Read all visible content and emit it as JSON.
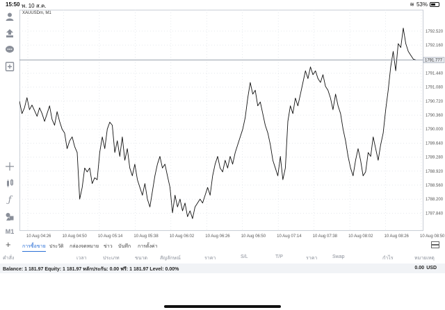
{
  "status": {
    "time": "15:50",
    "date": "พ. 10 ส.ค.",
    "battery": "53%",
    "battery_level": 0.53
  },
  "toolbar": {
    "items": [
      {
        "name": "account-icon",
        "glyph": "●"
      },
      {
        "name": "trade-icon",
        "glyph": "⇵"
      },
      {
        "name": "chat-icon",
        "glyph": "●"
      },
      {
        "name": "new-order-icon",
        "glyph": "+"
      },
      {
        "name": "crosshair-icon",
        "glyph": "+"
      },
      {
        "name": "chart-type-icon",
        "glyph": "┃"
      },
      {
        "name": "indicator-icon",
        "glyph": "ƒ"
      },
      {
        "name": "objects-icon",
        "glyph": "♦"
      }
    ],
    "timeframe": "M1"
  },
  "chart": {
    "symbol_label": "XAUUSDm, M1",
    "current_price": "1791.777",
    "colors": {
      "line": "#111111",
      "grid": "#d6dbe2",
      "price_line": "#8c95a3",
      "price_tag_bg": "#e6e9ee"
    },
    "chart_data": {
      "type": "line",
      "title": "XAUUSDm, M1",
      "xlabel": "",
      "ylabel": "",
      "ylim": [
        1787.4,
        1793.0
      ],
      "y_ticks": [
        "1792.520",
        "1792.160",
        "1791.440",
        "1791.080",
        "1790.720",
        "1790.360",
        "1790.000",
        "1789.640",
        "1789.280",
        "1788.920",
        "1788.560",
        "1788.200",
        "1787.840"
      ],
      "x_ticks": [
        "10 Aug 04:26",
        "10 Aug 04:50",
        "10 Aug 05:14",
        "10 Aug 05:38",
        "10 Aug 06:02",
        "10 Aug 06:26",
        "10 Aug 06:50",
        "10 Aug 07:14",
        "10 Aug 07:38",
        "10 Aug 08:02",
        "10 Aug 08:26",
        "10 Aug 08:50"
      ],
      "series": [
        {
          "values": [
            1790.72,
            1790.4,
            1790.55,
            1790.81,
            1790.5,
            1790.62,
            1790.48,
            1790.33,
            1790.55,
            1790.4,
            1790.2,
            1790.4,
            1790.6,
            1790.25,
            1790.1,
            1790.45,
            1790.2,
            1790.0,
            1789.9,
            1789.5,
            1789.7,
            1789.8,
            1789.55,
            1789.4,
            1788.2,
            1788.5,
            1789.0,
            1788.9,
            1789.0,
            1788.6,
            1788.75,
            1788.7,
            1789.4,
            1789.8,
            1789.5,
            1790.0,
            1790.18,
            1790.1,
            1789.4,
            1789.7,
            1789.3,
            1789.8,
            1789.2,
            1789.5,
            1789.0,
            1788.8,
            1789.1,
            1788.7,
            1788.5,
            1788.3,
            1788.6,
            1788.2,
            1788.0,
            1788.4,
            1788.8,
            1789.1,
            1789.3,
            1789.0,
            1789.1,
            1788.8,
            1788.5,
            1787.85,
            1788.3,
            1788.0,
            1788.2,
            1787.9,
            1788.1,
            1787.75,
            1787.9,
            1787.7,
            1788.0,
            1788.1,
            1788.2,
            1788.1,
            1788.3,
            1788.5,
            1788.3,
            1788.8,
            1789.1,
            1789.3,
            1789.0,
            1788.9,
            1789.2,
            1789.0,
            1789.3,
            1789.1,
            1789.4,
            1789.6,
            1789.8,
            1790.0,
            1790.3,
            1790.8,
            1791.2,
            1790.9,
            1791.0,
            1790.6,
            1790.7,
            1790.4,
            1790.1,
            1789.9,
            1789.6,
            1789.2,
            1789.0,
            1788.8,
            1789.3,
            1788.7,
            1789.0,
            1790.2,
            1790.6,
            1790.4,
            1790.8,
            1790.6,
            1790.9,
            1791.2,
            1791.5,
            1791.3,
            1791.6,
            1791.4,
            1791.5,
            1791.3,
            1791.2,
            1791.4,
            1791.1,
            1791.0,
            1790.8,
            1790.5,
            1790.9,
            1790.6,
            1790.4,
            1790.0,
            1789.7,
            1789.3,
            1789.0,
            1788.8,
            1789.2,
            1789.5,
            1789.2,
            1788.8,
            1788.9,
            1789.4,
            1789.3,
            1789.8,
            1789.5,
            1789.2,
            1789.6,
            1789.9,
            1790.5,
            1791.0,
            1791.6,
            1792.0,
            1791.5,
            1792.2,
            1792.1,
            1792.6,
            1792.2,
            1792.0,
            1791.9,
            1791.8,
            1791.78
          ]
        }
      ]
    }
  },
  "tabs": {
    "items": [
      {
        "label": "การซื้อขาย",
        "active": true
      },
      {
        "label": "ประวัติ",
        "active": false
      },
      {
        "label": "กล่องจดหมาย",
        "active": false
      },
      {
        "label": "ข่าว",
        "active": false
      },
      {
        "label": "บันทึก",
        "active": false
      },
      {
        "label": "การตั้งค่า",
        "active": false
      }
    ]
  },
  "columns": [
    "คำสั่ง",
    "เวลา",
    "ประเภท",
    "ขนาด",
    "สัญลักษณ์",
    "ราคา",
    "S/L",
    "T/P",
    "ราคา",
    "Swap",
    "กำไร",
    "หมายเหตุ"
  ],
  "account": {
    "summary": "Balance: 1 181.97 Equity: 1 181.97 หลักประกัน: 0.00 ฟรี: 1 181.97 Level: 0.00%",
    "profit": "0.00",
    "currency": "USD"
  }
}
